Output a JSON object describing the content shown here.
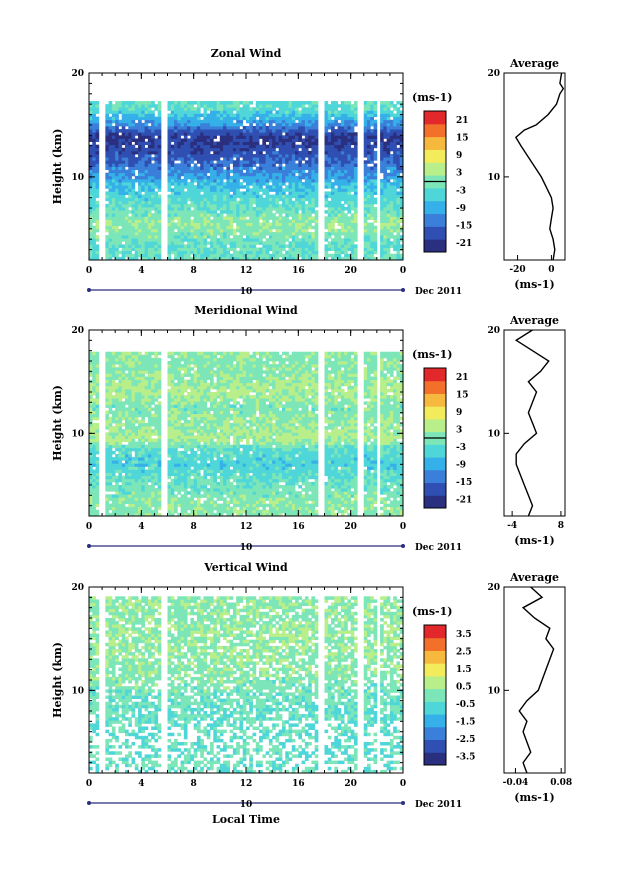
{
  "chart_data": [
    {
      "type": "heatmap",
      "title": "Zonal Wind",
      "ylabel": "Height (km)",
      "xlabel": "",
      "xlim": [
        0,
        24
      ],
      "ylim": [
        2,
        20
      ],
      "x_ticks": [
        "0",
        "4",
        "8",
        "12",
        "16",
        "20",
        "0"
      ],
      "y_ticks": [
        "20",
        "10"
      ],
      "date_marker": "10",
      "date_label": "Dec 2011",
      "colorbar": {
        "unit": "(ms-1)",
        "ticks": [
          "21",
          "15",
          "9",
          "3",
          "-3",
          "-9",
          "-15",
          "-21"
        ],
        "range": [
          -24,
          24
        ],
        "zero_line": 0
      },
      "gaps": [
        1.0,
        5.7,
        17.7,
        20.8,
        22.1
      ],
      "layers": [
        {
          "height": 3.5,
          "value": -2
        },
        {
          "height": 5.5,
          "value": 2
        },
        {
          "height": 7.5,
          "value": -3
        },
        {
          "height": 9.0,
          "value": -6
        },
        {
          "height": 10.5,
          "value": -12
        },
        {
          "height": 12.5,
          "value": -18
        },
        {
          "height": 13.8,
          "value": -21
        },
        {
          "height": 15.0,
          "value": -12
        },
        {
          "height": 16.5,
          "value": -3
        }
      ],
      "average_profile": {
        "title": "Average",
        "unit": "(ms-1)",
        "x_ticks": [
          "-20",
          "0"
        ],
        "xlim": [
          -28,
          8
        ],
        "heights": [
          2,
          3,
          4,
          5,
          6,
          7,
          8,
          9,
          10,
          11,
          12,
          13,
          13.8,
          14.5,
          15,
          16,
          17,
          18,
          18.5,
          19,
          20
        ],
        "values": [
          1,
          2,
          1,
          -1,
          0,
          1,
          0,
          -3,
          -6,
          -10,
          -14,
          -18,
          -21,
          -16,
          -9,
          -2,
          3,
          5,
          7,
          5,
          6
        ]
      }
    },
    {
      "type": "heatmap",
      "title": "Meridional Wind",
      "ylabel": "Height (km)",
      "xlabel": "",
      "xlim": [
        0,
        24
      ],
      "ylim": [
        2,
        20
      ],
      "x_ticks": [
        "0",
        "4",
        "8",
        "12",
        "16",
        "20",
        "0"
      ],
      "y_ticks": [
        "20",
        "10"
      ],
      "date_marker": "10",
      "date_label": "Dec 2011",
      "colorbar": {
        "unit": "(ms-1)",
        "ticks": [
          "21",
          "15",
          "9",
          "3",
          "-3",
          "-9",
          "-15",
          "-21"
        ],
        "range": [
          -24,
          24
        ],
        "zero_line": 0
      },
      "gaps": [
        1.0,
        5.7,
        17.7,
        20.8,
        22.1
      ],
      "layers": [
        {
          "height": 3.5,
          "value": 1
        },
        {
          "height": 5.5,
          "value": -2
        },
        {
          "height": 7.0,
          "value": -5
        },
        {
          "height": 8.5,
          "value": -3
        },
        {
          "height": 9.5,
          "value": 4
        },
        {
          "height": 11.0,
          "value": 2
        },
        {
          "height": 12.5,
          "value": 0
        },
        {
          "height": 14.0,
          "value": 4
        },
        {
          "height": 16.0,
          "value": 1
        }
      ],
      "average_profile": {
        "title": "Average",
        "unit": "(ms-1)",
        "x_ticks": [
          "-4",
          "8"
        ],
        "xlim": [
          -6,
          9
        ],
        "heights": [
          2,
          3,
          4,
          5,
          6,
          7,
          8,
          9,
          10,
          11,
          12,
          13,
          14,
          15,
          16,
          17,
          18,
          19,
          20
        ],
        "values": [
          0,
          1,
          0,
          -1,
          -2,
          -3,
          -3,
          -1,
          2,
          1,
          0,
          1,
          2,
          0,
          3,
          5,
          1,
          -3,
          1
        ]
      }
    },
    {
      "type": "heatmap",
      "title": "Vertical Wind",
      "ylabel": "Height (km)",
      "xlabel": "Local Time",
      "xlim": [
        0,
        24
      ],
      "ylim": [
        2,
        20
      ],
      "x_ticks": [
        "0",
        "4",
        "8",
        "12",
        "16",
        "20",
        "0"
      ],
      "y_ticks": [
        "20",
        "10"
      ],
      "date_marker": "10",
      "date_label": "Dec 2011",
      "colorbar": {
        "unit": "(ms-1)",
        "ticks": [
          "3.5",
          "2.5",
          "1.5",
          "0.5",
          "-0.5",
          "-1.5",
          "-2.5",
          "-3.5"
        ],
        "range": [
          -4,
          4
        ],
        "zero_line": null
      },
      "gaps": [
        1.0,
        5.7,
        17.7,
        20.8,
        22.1
      ],
      "layers": [
        {
          "height": 3.5,
          "value": -0.3
        },
        {
          "height": 6.0,
          "value": -0.4
        },
        {
          "height": 9.0,
          "value": -0.2
        },
        {
          "height": 12.0,
          "value": 0.2
        },
        {
          "height": 15.0,
          "value": 0.3
        },
        {
          "height": 18.0,
          "value": 0.2
        }
      ],
      "average_profile": {
        "title": "Average",
        "unit": "(ms-1)",
        "x_ticks": [
          "-0.04",
          "0.08"
        ],
        "xlim": [
          -0.07,
          0.09
        ],
        "heights": [
          2,
          3,
          4,
          5,
          6,
          7,
          8,
          9,
          10,
          11,
          12,
          13,
          14,
          15,
          16,
          17,
          18,
          19,
          20
        ],
        "values": [
          -0.01,
          -0.02,
          0.0,
          -0.01,
          -0.02,
          -0.01,
          -0.03,
          -0.01,
          0.02,
          0.03,
          0.04,
          0.05,
          0.06,
          0.04,
          0.05,
          0.01,
          -0.02,
          0.03,
          0.0
        ]
      }
    }
  ],
  "palette": [
    "#2a2f7f",
    "#2f4fb2",
    "#3a7fd9",
    "#35b0e8",
    "#4fd6d8",
    "#7ce6b8",
    "#b8ef8a",
    "#f2ec5c",
    "#f7b83e",
    "#f2702a",
    "#e3282b"
  ]
}
